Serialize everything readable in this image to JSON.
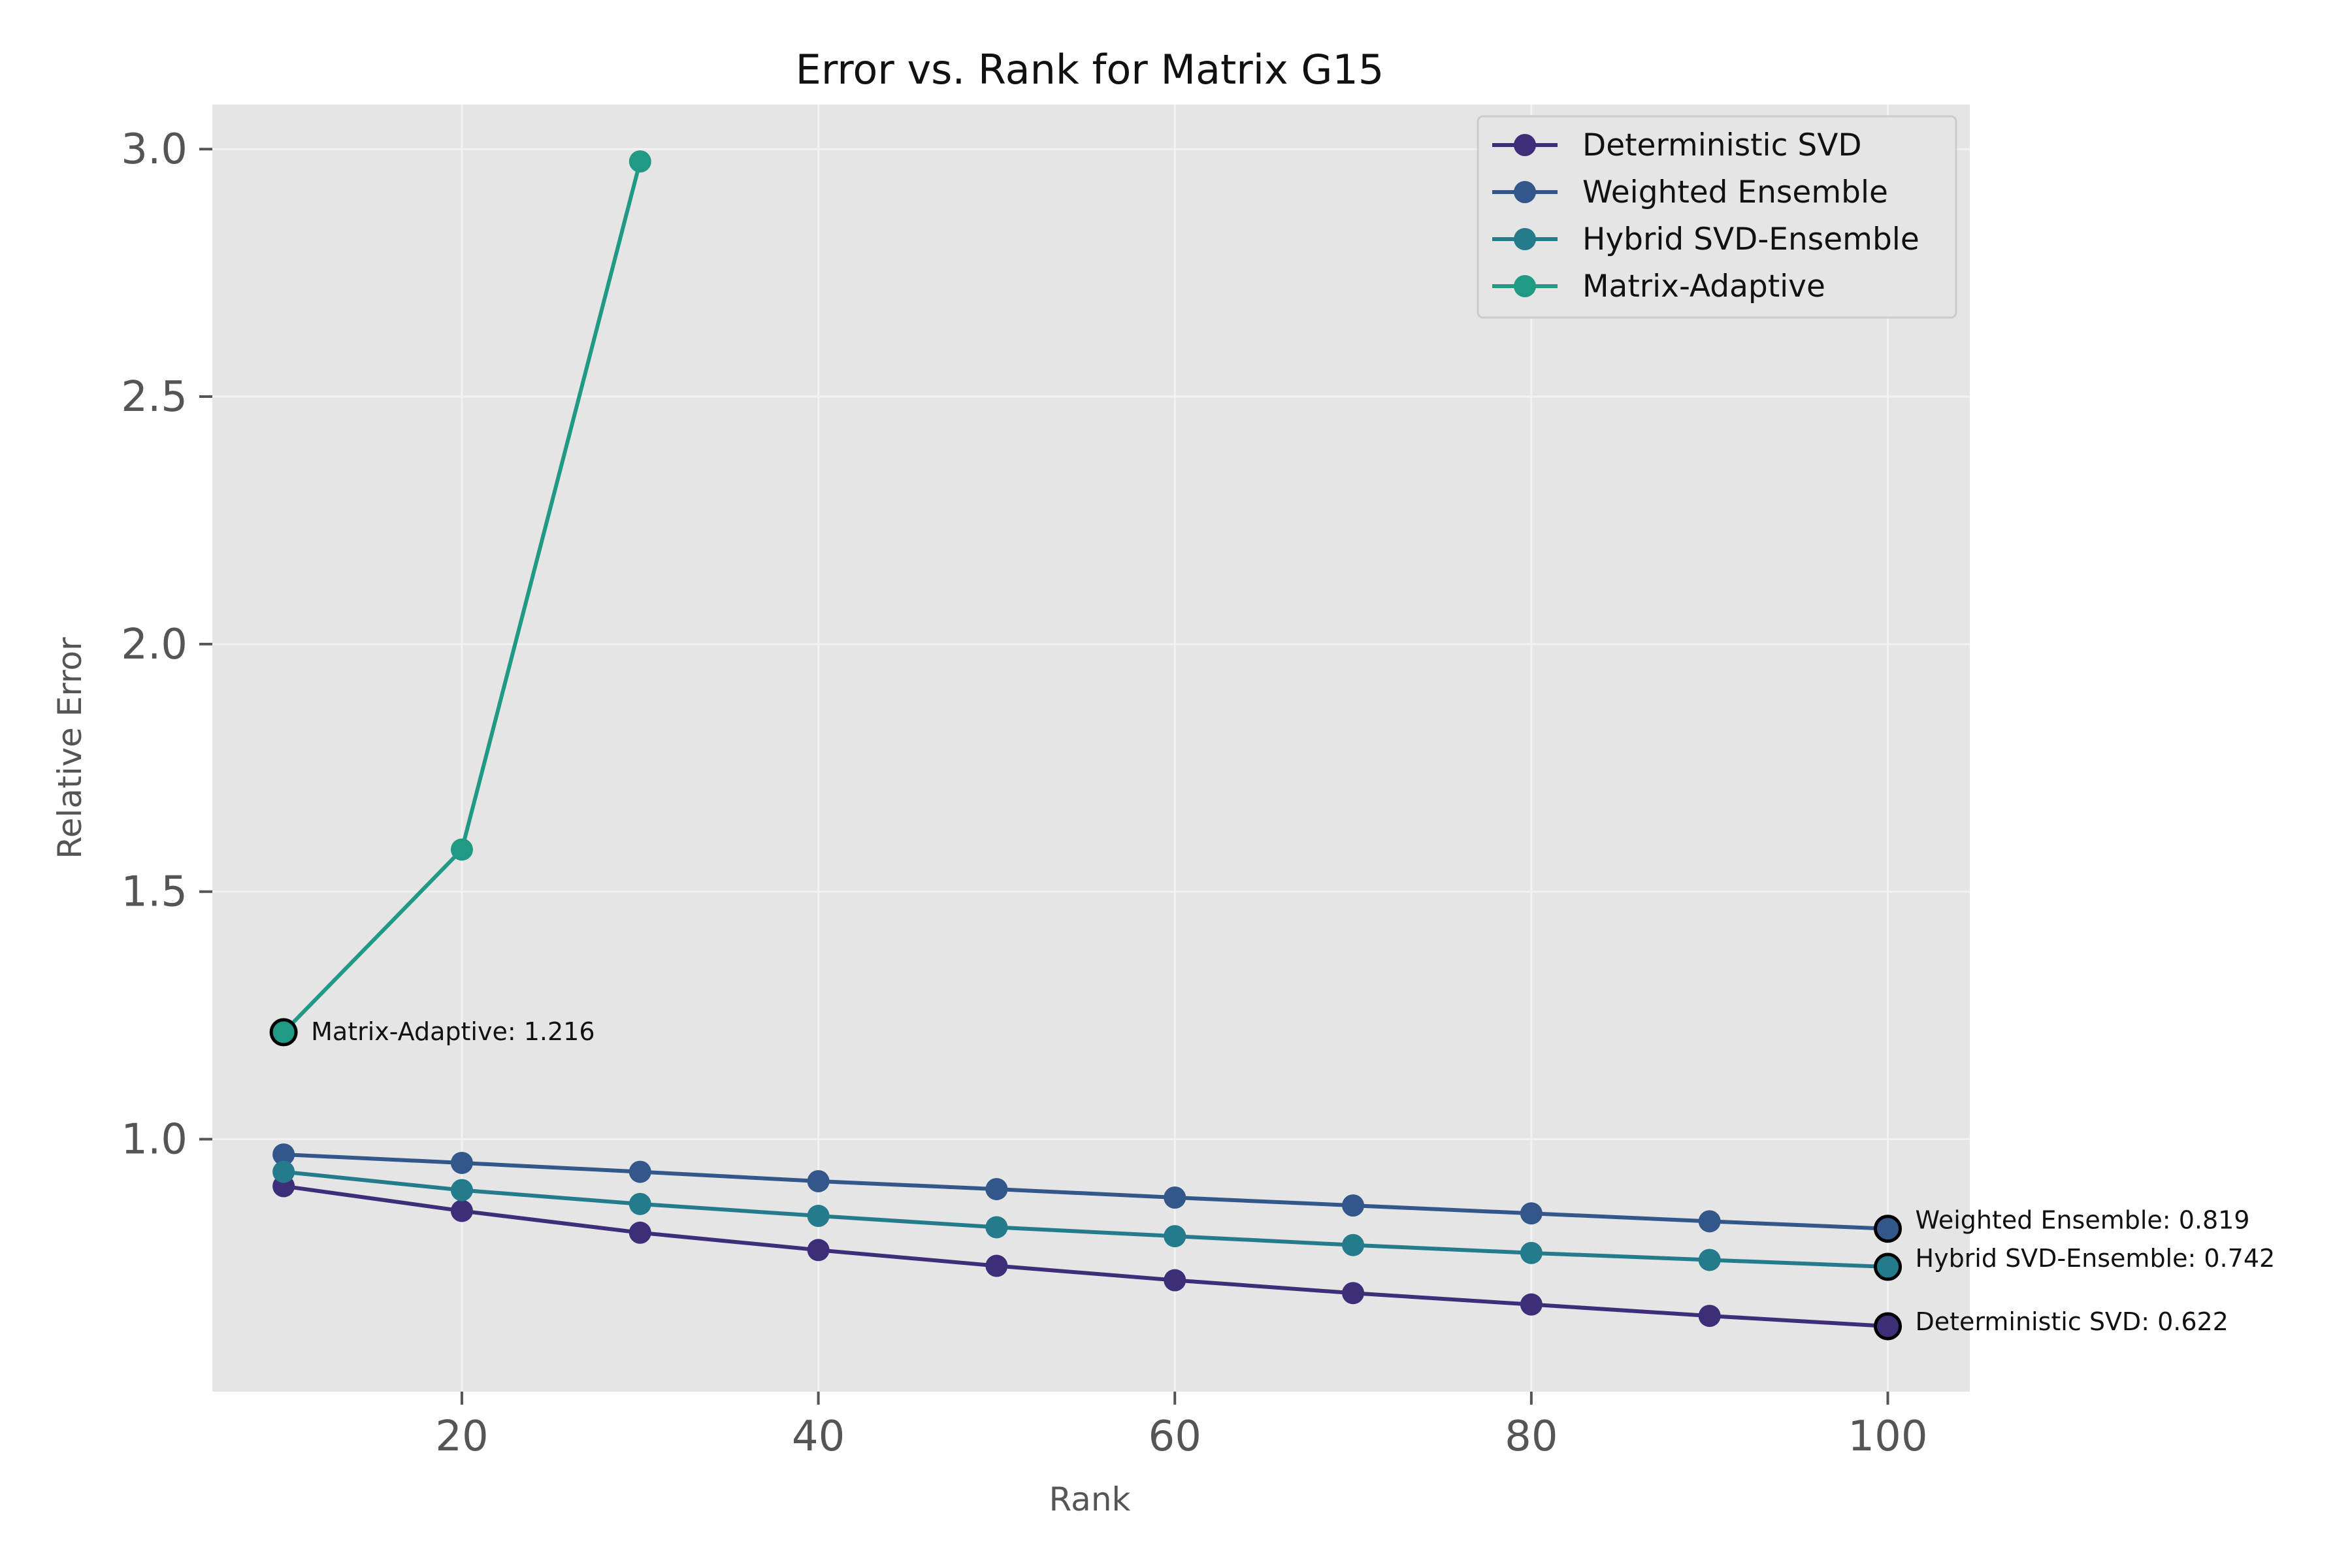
{
  "chart_data": {
    "type": "line",
    "title": "Error vs. Rank for Matrix G15",
    "xlabel": "Rank",
    "ylabel": "Relative Error",
    "xlim": [
      6,
      104.6
    ],
    "ylim": [
      0.49,
      3.09
    ],
    "xticks": [
      20,
      40,
      60,
      80,
      100
    ],
    "yticks": [
      1.0,
      1.5,
      2.0,
      2.5,
      3.0
    ],
    "ytick_labels": [
      "1.0",
      "1.5",
      "2.0",
      "2.5",
      "3.0"
    ],
    "xtick_labels": [
      "20",
      "40",
      "60",
      "80",
      "100"
    ],
    "grid": true,
    "legend_position": "top-right",
    "plot_background": "#e5e5e5",
    "grid_color": "#f2f2f2",
    "series": [
      {
        "name": "Deterministic SVD",
        "color": "#3e2e7a",
        "x": [
          10,
          20,
          30,
          40,
          50,
          60,
          70,
          80,
          90,
          100
        ],
        "y": [
          0.905,
          0.855,
          0.811,
          0.776,
          0.744,
          0.715,
          0.689,
          0.666,
          0.643,
          0.622
        ]
      },
      {
        "name": "Weighted Ensemble",
        "color": "#33578a",
        "x": [
          10,
          20,
          30,
          40,
          50,
          60,
          70,
          80,
          90,
          100
        ],
        "y": [
          0.969,
          0.952,
          0.934,
          0.915,
          0.899,
          0.882,
          0.866,
          0.85,
          0.834,
          0.819
        ]
      },
      {
        "name": "Hybrid SVD-Ensemble",
        "color": "#247b8c",
        "x": [
          10,
          20,
          30,
          40,
          50,
          60,
          70,
          80,
          90,
          100
        ],
        "y": [
          0.934,
          0.897,
          0.869,
          0.845,
          0.822,
          0.804,
          0.786,
          0.77,
          0.756,
          0.742
        ]
      },
      {
        "name": "Matrix-Adaptive",
        "color": "#219a85",
        "x": [
          10,
          20,
          30
        ],
        "y": [
          1.216,
          1.585,
          2.975
        ]
      }
    ],
    "annotations": [
      {
        "text": "Matrix-Adaptive: 1.216",
        "series": 3,
        "x": 10,
        "y": 1.216
      },
      {
        "text": "Weighted Ensemble: 0.819",
        "series": 1,
        "x": 100,
        "y": 0.819
      },
      {
        "text": "Hybrid SVD-Ensemble: 0.742",
        "series": 2,
        "x": 100,
        "y": 0.742
      },
      {
        "text": "Deterministic SVD: 0.622",
        "series": 0,
        "x": 100,
        "y": 0.622
      }
    ]
  }
}
